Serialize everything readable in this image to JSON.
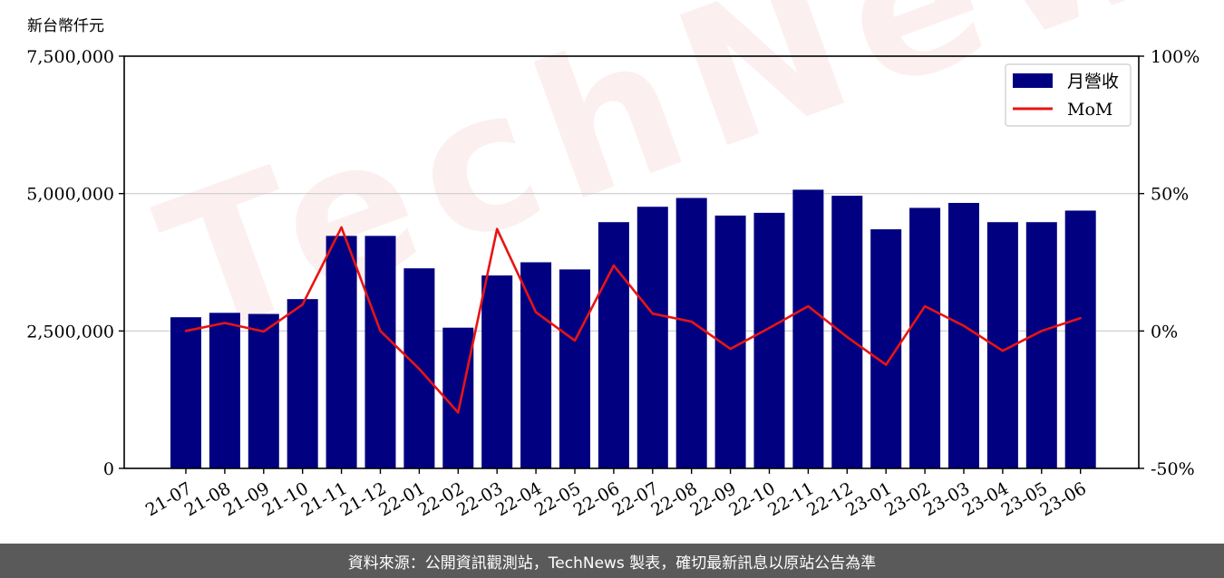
{
  "unit_label": "新台幣仟元",
  "watermark_text": "TechNews",
  "footer_text": "資料來源：公開資訊觀測站，TechNews 製表，確切最新訊息以原站公告為準",
  "colors": {
    "bar": "#000080",
    "line": "#e81414",
    "grid": "#cccccc",
    "footer_bg": "#5a5a5a"
  },
  "chart_data": {
    "type": "bar",
    "title": "",
    "xlabel": "",
    "ylabel": "",
    "categories": [
      "21-07",
      "21-08",
      "21-09",
      "21-10",
      "21-11",
      "21-12",
      "22-01",
      "22-02",
      "22-03",
      "22-04",
      "22-05",
      "22-06",
      "22-07",
      "22-08",
      "22-09",
      "22-10",
      "22-11",
      "22-12",
      "23-01",
      "23-02",
      "23-03",
      "23-04",
      "23-05",
      "23-06"
    ],
    "series": [
      {
        "name": "月營收",
        "kind": "bar",
        "axis": "left",
        "values": [
          2750000,
          2830000,
          2810000,
          3080000,
          4230000,
          4230000,
          3640000,
          2560000,
          3510000,
          3750000,
          3620000,
          4480000,
          4760000,
          4920000,
          4600000,
          4650000,
          5070000,
          4960000,
          4350000,
          4740000,
          4830000,
          4480000,
          4480000,
          4690000
        ]
      },
      {
        "name": "MoM",
        "kind": "line",
        "axis": "right",
        "values": [
          0,
          2.9,
          -0.2,
          9.6,
          37.7,
          0,
          -13.8,
          -29.7,
          37.1,
          6.8,
          -3.5,
          23.8,
          6.3,
          3.4,
          -6.5,
          1.1,
          9.0,
          -2.2,
          -12.3,
          9.0,
          1.9,
          -7.2,
          0,
          4.7
        ]
      }
    ],
    "ylim": [
      0,
      7500000
    ],
    "y_ticks": [
      0,
      2500000,
      5000000,
      7500000
    ],
    "y_tick_labels": [
      "0",
      "2,500,000",
      "5,000,000",
      "7,500,000"
    ],
    "y2lim": [
      -50,
      100
    ],
    "y2_ticks": [
      -50,
      0,
      50,
      100
    ],
    "y2_tick_labels": [
      "-50%",
      "0%",
      "50%",
      "100%"
    ],
    "grid": "horizontal",
    "legend_position": "top-right"
  }
}
